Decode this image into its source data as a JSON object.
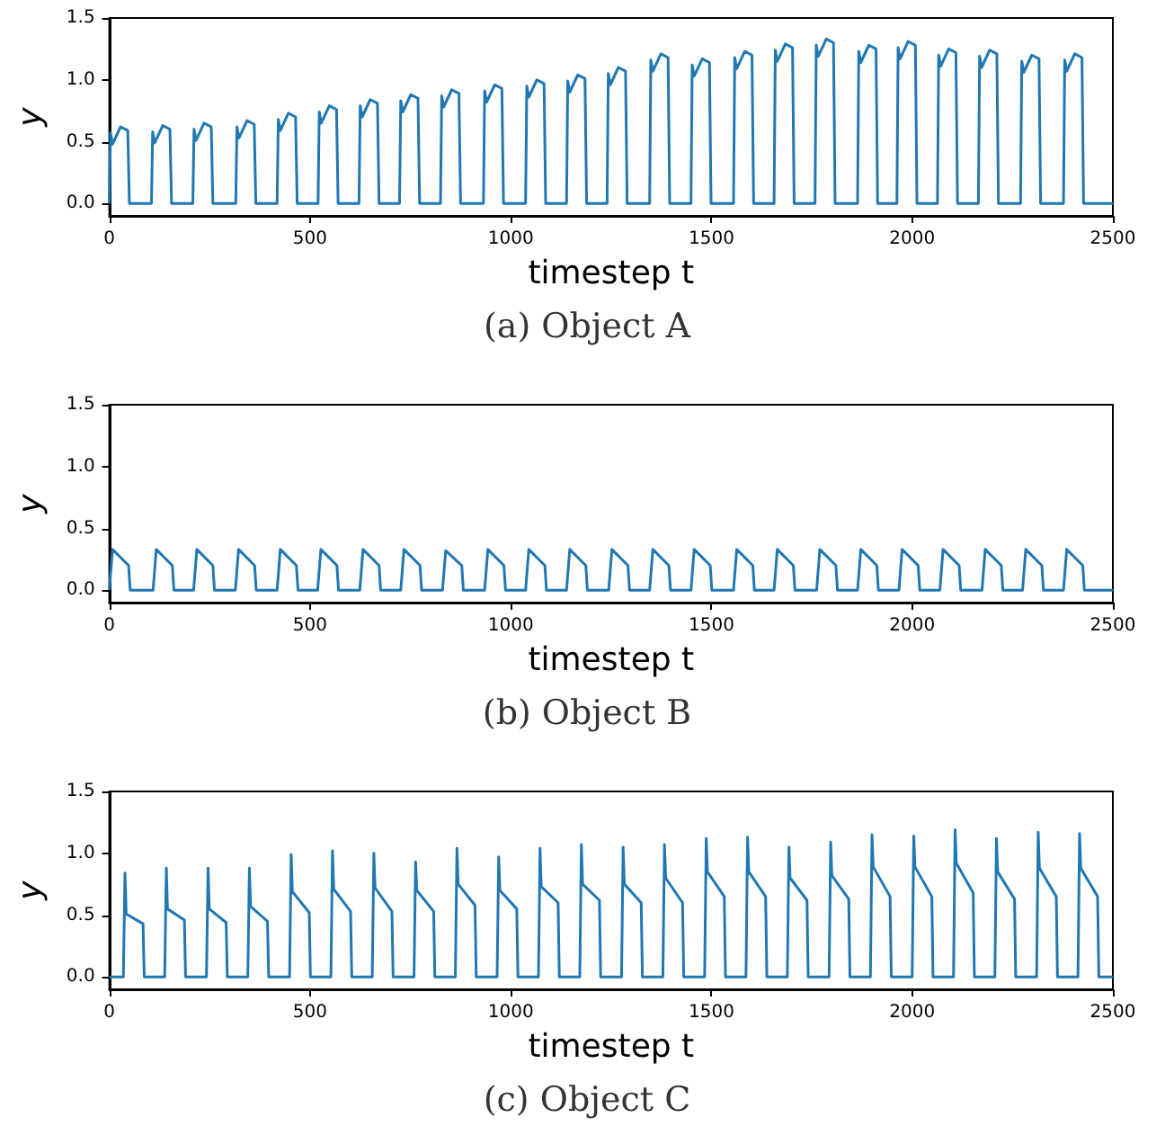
{
  "chart_data": [
    {
      "type": "line",
      "xlabel": "timestep t",
      "ylabel": "y",
      "annotations": [
        "(a) Object A"
      ],
      "xlim": [
        0,
        2500
      ],
      "xticks": [
        0,
        500,
        1000,
        1500,
        2000,
        2500
      ],
      "ylim": [
        -0.1,
        1.5
      ],
      "yticks": [
        {
          "value": 0,
          "label": "0.0"
        },
        {
          "value": 0.5,
          "label": "0.5"
        },
        {
          "value": 1,
          "label": "1.0"
        },
        {
          "value": 1.5,
          "label": "1.5"
        }
      ],
      "series": [
        {
          "color": "#1f77b4",
          "x": [
            0,
            3,
            8,
            28,
            46,
            50,
            105,
            108,
            113,
            133,
            151,
            155,
            208,
            211,
            216,
            236,
            254,
            258,
            315,
            318,
            323,
            343,
            361,
            365,
            418,
            421,
            426,
            446,
            464,
            468,
            520,
            523,
            528,
            548,
            566,
            570,
            622,
            625,
            630,
            650,
            668,
            672,
            723,
            726,
            731,
            751,
            769,
            773,
            825,
            828,
            833,
            853,
            871,
            875,
            932,
            935,
            940,
            960,
            978,
            982,
            1037,
            1040,
            1045,
            1065,
            1083,
            1087,
            1139,
            1142,
            1147,
            1167,
            1185,
            1189,
            1240,
            1243,
            1248,
            1268,
            1286,
            1290,
            1346,
            1349,
            1354,
            1374,
            1392,
            1396,
            1449,
            1452,
            1457,
            1477,
            1495,
            1499,
            1555,
            1558,
            1563,
            1583,
            1601,
            1605,
            1656,
            1659,
            1664,
            1684,
            1702,
            1706,
            1758,
            1761,
            1766,
            1786,
            1804,
            1808,
            1864,
            1867,
            1872,
            1892,
            1910,
            1914,
            1962,
            1965,
            1970,
            1990,
            2008,
            2012,
            2063,
            2066,
            2071,
            2091,
            2109,
            2113,
            2165,
            2168,
            2173,
            2193,
            2211,
            2215,
            2270,
            2273,
            2278,
            2298,
            2316,
            2320,
            2377,
            2380,
            2385,
            2405,
            2423,
            2427,
            2500
          ],
          "values": [
            0,
            0.57,
            0.48,
            0.62,
            0.59,
            0,
            0,
            0.58,
            0.49,
            0.63,
            0.6,
            0,
            0,
            0.6,
            0.51,
            0.65,
            0.62,
            0,
            0,
            0.62,
            0.53,
            0.67,
            0.64,
            0,
            0,
            0.68,
            0.59,
            0.73,
            0.7,
            0,
            0,
            0.74,
            0.65,
            0.79,
            0.76,
            0,
            0,
            0.79,
            0.7,
            0.84,
            0.81,
            0,
            0,
            0.83,
            0.74,
            0.88,
            0.85,
            0,
            0,
            0.87,
            0.78,
            0.92,
            0.89,
            0,
            0,
            0.91,
            0.82,
            0.96,
            0.93,
            0,
            0,
            0.95,
            0.86,
            1.0,
            0.97,
            0,
            0,
            0.99,
            0.9,
            1.04,
            1.01,
            0,
            0,
            1.05,
            0.96,
            1.1,
            1.07,
            0,
            0,
            1.16,
            1.07,
            1.21,
            1.18,
            0,
            0,
            1.12,
            1.03,
            1.17,
            1.14,
            0,
            0,
            1.18,
            1.09,
            1.23,
            1.2,
            0,
            0,
            1.24,
            1.15,
            1.29,
            1.26,
            0,
            0,
            1.28,
            1.19,
            1.33,
            1.3,
            0,
            0,
            1.23,
            1.14,
            1.28,
            1.25,
            0,
            0,
            1.26,
            1.17,
            1.31,
            1.28,
            0,
            0,
            1.2,
            1.11,
            1.25,
            1.22,
            0,
            0,
            1.19,
            1.1,
            1.24,
            1.21,
            0,
            0,
            1.15,
            1.06,
            1.2,
            1.17,
            0,
            0,
            1.16,
            1.07,
            1.21,
            1.18,
            0,
            0
          ]
        }
      ]
    },
    {
      "type": "line",
      "xlabel": "timestep t",
      "ylabel": "y",
      "annotations": [
        "(b) Object B"
      ],
      "xlim": [
        0,
        2500
      ],
      "xticks": [
        0,
        500,
        1000,
        1500,
        2000,
        2500
      ],
      "ylim": [
        -0.1,
        1.5
      ],
      "yticks": [
        {
          "value": 0,
          "label": "0.0"
        },
        {
          "value": 0.5,
          "label": "0.5"
        },
        {
          "value": 1,
          "label": "1.0"
        },
        {
          "value": 1.5,
          "label": "1.5"
        }
      ],
      "series": [
        {
          "color": "#1f77b4",
          "x": [
            0,
            8,
            48,
            52,
            109,
            117,
            157,
            161,
            210,
            218,
            258,
            262,
            314,
            322,
            362,
            366,
            418,
            426,
            466,
            470,
            519,
            527,
            567,
            571,
            624,
            632,
            672,
            676,
            726,
            734,
            774,
            778,
            830,
            838,
            878,
            882,
            935,
            943,
            983,
            987,
            1037,
            1045,
            1085,
            1089,
            1139,
            1147,
            1187,
            1191,
            1244,
            1252,
            1292,
            1296,
            1346,
            1354,
            1394,
            1398,
            1449,
            1457,
            1497,
            1501,
            1555,
            1563,
            1603,
            1607,
            1656,
            1664,
            1704,
            1708,
            1762,
            1770,
            1810,
            1814,
            1864,
            1872,
            1912,
            1916,
            1967,
            1975,
            2015,
            2019,
            2069,
            2077,
            2117,
            2121,
            2174,
            2182,
            2222,
            2226,
            2275,
            2283,
            2323,
            2327,
            2377,
            2385,
            2425,
            2429,
            2500
          ],
          "values": [
            0,
            0.33,
            0.2,
            0,
            0,
            0.33,
            0.2,
            0,
            0,
            0.33,
            0.2,
            0,
            0,
            0.33,
            0.2,
            0,
            0,
            0.33,
            0.2,
            0,
            0,
            0.33,
            0.2,
            0,
            0,
            0.33,
            0.2,
            0,
            0,
            0.33,
            0.2,
            0,
            0,
            0.32,
            0.2,
            0,
            0,
            0.33,
            0.2,
            0,
            0,
            0.33,
            0.2,
            0,
            0,
            0.33,
            0.2,
            0,
            0,
            0.33,
            0.2,
            0,
            0,
            0.33,
            0.2,
            0,
            0,
            0.33,
            0.2,
            0,
            0,
            0.33,
            0.2,
            0,
            0,
            0.33,
            0.2,
            0,
            0,
            0.33,
            0.2,
            0,
            0,
            0.33,
            0.2,
            0,
            0,
            0.33,
            0.2,
            0,
            0,
            0.33,
            0.2,
            0,
            0,
            0.33,
            0.2,
            0,
            0,
            0.33,
            0.2,
            0,
            0,
            0.33,
            0.2,
            0,
            0
          ]
        }
      ]
    },
    {
      "type": "line",
      "xlabel": "timestep t",
      "ylabel": "y",
      "annotations": [
        "(c) Object C"
      ],
      "xlim": [
        0,
        2500
      ],
      "xticks": [
        0,
        500,
        1000,
        1500,
        2000,
        2500
      ],
      "ylim": [
        -0.1,
        1.5
      ],
      "yticks": [
        {
          "value": 0,
          "label": "0.0"
        },
        {
          "value": 0.5,
          "label": "0.5"
        },
        {
          "value": 1,
          "label": "1.0"
        },
        {
          "value": 1.5,
          "label": "1.5"
        }
      ],
      "series": [
        {
          "color": "#1f77b4",
          "x": [
            0,
            35,
            39,
            42,
            84,
            87,
            138,
            142,
            145,
            187,
            190,
            242,
            246,
            249,
            291,
            294,
            345,
            349,
            352,
            394,
            397,
            449,
            453,
            456,
            498,
            501,
            552,
            556,
            559,
            601,
            604,
            655,
            659,
            662,
            704,
            707,
            759,
            763,
            766,
            808,
            811,
            862,
            866,
            869,
            911,
            914,
            966,
            970,
            973,
            1015,
            1018,
            1069,
            1073,
            1076,
            1118,
            1121,
            1172,
            1176,
            1179,
            1221,
            1224,
            1276,
            1280,
            1283,
            1325,
            1328,
            1379,
            1383,
            1386,
            1428,
            1431,
            1483,
            1487,
            1490,
            1532,
            1535,
            1586,
            1590,
            1593,
            1635,
            1638,
            1689,
            1693,
            1696,
            1738,
            1741,
            1793,
            1797,
            1800,
            1842,
            1845,
            1896,
            1900,
            1903,
            1945,
            1948,
            2000,
            2004,
            2007,
            2049,
            2052,
            2103,
            2107,
            2110,
            2152,
            2155,
            2206,
            2210,
            2213,
            2255,
            2258,
            2310,
            2314,
            2317,
            2359,
            2362,
            2413,
            2417,
            2420,
            2462,
            2465,
            2500
          ],
          "values": [
            0,
            0,
            0.84,
            0.51,
            0.43,
            0,
            0,
            0.88,
            0.55,
            0.46,
            0,
            0,
            0.88,
            0.55,
            0.44,
            0,
            0,
            0.88,
            0.57,
            0.45,
            0,
            0,
            0.99,
            0.69,
            0.52,
            0,
            0,
            1.02,
            0.71,
            0.53,
            0,
            0,
            1.0,
            0.72,
            0.53,
            0,
            0,
            0.93,
            0.7,
            0.53,
            0,
            0,
            1.04,
            0.75,
            0.58,
            0,
            0,
            0.97,
            0.7,
            0.55,
            0,
            0,
            1.04,
            0.73,
            0.6,
            0,
            0,
            1.07,
            0.75,
            0.62,
            0,
            0,
            1.05,
            0.75,
            0.6,
            0,
            0,
            1.07,
            0.8,
            0.6,
            0,
            0,
            1.12,
            0.85,
            0.65,
            0,
            0,
            1.13,
            0.85,
            0.65,
            0,
            0,
            1.05,
            0.8,
            0.62,
            0,
            0,
            1.09,
            0.82,
            0.63,
            0,
            0,
            1.15,
            0.89,
            0.65,
            0,
            0,
            1.14,
            0.89,
            0.65,
            0,
            0,
            1.19,
            0.92,
            0.68,
            0,
            0,
            1.12,
            0.85,
            0.63,
            0,
            0,
            1.17,
            0.88,
            0.65,
            0,
            0,
            1.16,
            0.88,
            0.65,
            0,
            0
          ]
        }
      ]
    }
  ]
}
